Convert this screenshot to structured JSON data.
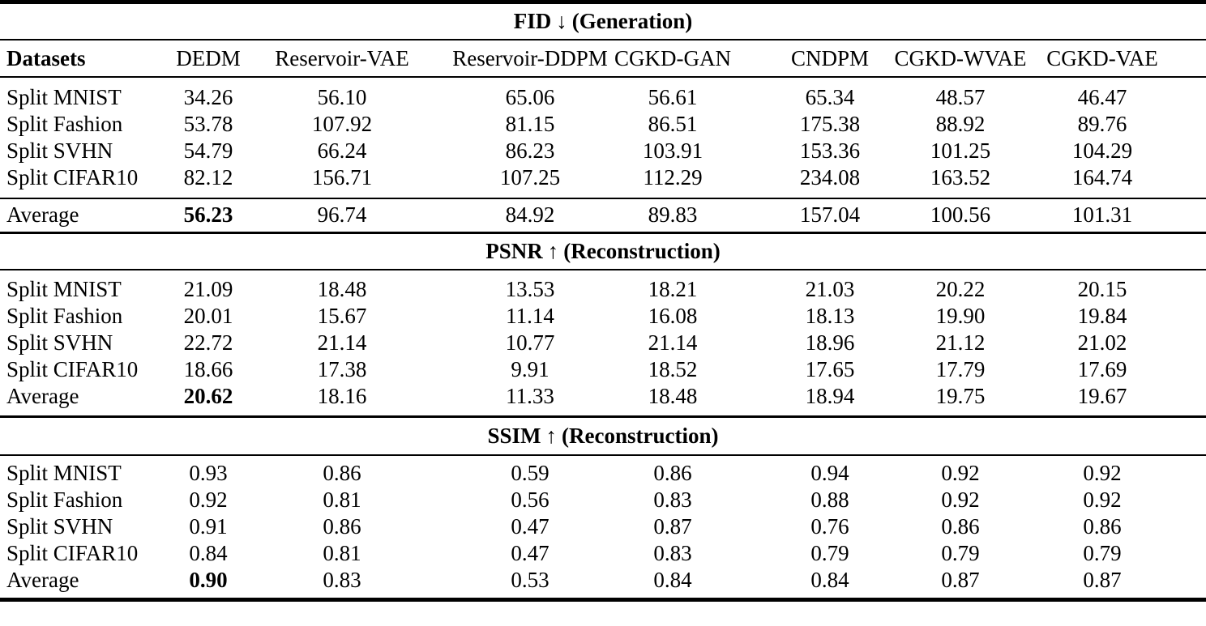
{
  "page": {
    "background": "#ffffff",
    "text_color": "#000000",
    "rule_color": "#000000"
  },
  "table": {
    "columns": [
      "Datasets",
      "DEDM",
      "Reservoir-VAE",
      "Reservoir-DDPM",
      "CGKD-GAN",
      "CNDPM",
      "CGKD-WVAE",
      "CGKD-VAE"
    ],
    "sections": [
      {
        "id": "fid",
        "title": {
          "metric": "FID",
          "arrow": "↓",
          "task": "(Generation)"
        },
        "average_separated": true,
        "dataset_rows": [
          {
            "label": "Split MNIST",
            "values": [
              "34.26",
              "56.10",
              "65.06",
              "56.61",
              "65.34",
              "48.57",
              "46.47"
            ]
          },
          {
            "label": "Split Fashion",
            "values": [
              "53.78",
              "107.92",
              "81.15",
              "86.51",
              "175.38",
              "88.92",
              "89.76"
            ]
          },
          {
            "label": "Split SVHN",
            "values": [
              "54.79",
              "66.24",
              "86.23",
              "103.91",
              "153.36",
              "101.25",
              "104.29"
            ]
          },
          {
            "label": "Split CIFAR10",
            "values": [
              "82.12",
              "156.71",
              "107.25",
              "112.29",
              "234.08",
              "163.52",
              "164.74"
            ]
          }
        ],
        "average_row": {
          "label": "Average",
          "values": [
            "56.23",
            "96.74",
            "84.92",
            "89.83",
            "157.04",
            "100.56",
            "101.31"
          ],
          "bold_columns": [
            0
          ]
        }
      },
      {
        "id": "psnr",
        "title": {
          "metric": "PSNR",
          "arrow": "↑",
          "task": "(Reconstruction)"
        },
        "average_separated": false,
        "dataset_rows": [
          {
            "label": "Split MNIST",
            "values": [
              "21.09",
              "18.48",
              "13.53",
              "18.21",
              "21.03",
              "20.22",
              "20.15"
            ]
          },
          {
            "label": "Split Fashion",
            "values": [
              "20.01",
              "15.67",
              "11.14",
              "16.08",
              "18.13",
              "19.90",
              "19.84"
            ]
          },
          {
            "label": "Split SVHN",
            "values": [
              "22.72",
              "21.14",
              "10.77",
              "21.14",
              "18.96",
              "21.12",
              "21.02"
            ]
          },
          {
            "label": "Split CIFAR10",
            "values": [
              "18.66",
              "17.38",
              "9.91",
              "18.52",
              "17.65",
              "17.79",
              "17.69"
            ]
          }
        ],
        "average_row": {
          "label": "Average",
          "values": [
            "20.62",
            "18.16",
            "11.33",
            "18.48",
            "18.94",
            "19.75",
            "19.67"
          ],
          "bold_columns": [
            0
          ]
        }
      },
      {
        "id": "ssim",
        "title": {
          "metric": "SSIM",
          "arrow": "↑",
          "task": "(Reconstruction)"
        },
        "average_separated": false,
        "dataset_rows": [
          {
            "label": "Split MNIST",
            "values": [
              "0.93",
              "0.86",
              "0.59",
              "0.86",
              "0.94",
              "0.92",
              "0.92"
            ]
          },
          {
            "label": "Split Fashion",
            "values": [
              "0.92",
              "0.81",
              "0.56",
              "0.83",
              "0.88",
              "0.92",
              "0.92"
            ]
          },
          {
            "label": "Split SVHN",
            "values": [
              "0.91",
              "0.86",
              "0.47",
              "0.87",
              "0.76",
              "0.86",
              "0.86"
            ]
          },
          {
            "label": "Split CIFAR10",
            "values": [
              "0.84",
              "0.81",
              "0.47",
              "0.83",
              "0.79",
              "0.79",
              "0.79"
            ]
          }
        ],
        "average_row": {
          "label": "Average",
          "values": [
            "0.90",
            "0.83",
            "0.53",
            "0.84",
            "0.84",
            "0.87",
            "0.87"
          ],
          "bold_columns": [
            0
          ]
        }
      }
    ]
  }
}
